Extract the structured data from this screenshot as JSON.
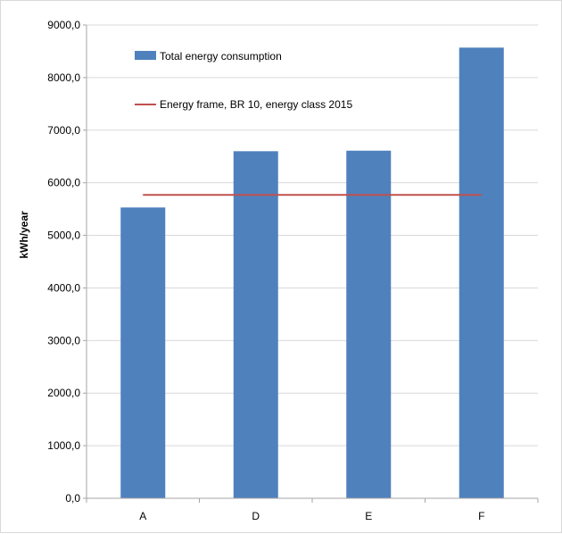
{
  "chart_data": {
    "type": "bar",
    "categories": [
      "A",
      "D",
      "E",
      "F"
    ],
    "series": [
      {
        "name": "Total energy consumption",
        "kind": "bar",
        "color": "#4f81bd",
        "values": [
          5530,
          6600,
          6610,
          8570
        ]
      },
      {
        "name": "Energy frame, BR 10, energy class 2015",
        "kind": "line",
        "color": "#c0504d",
        "values": [
          5770,
          5770,
          5770,
          5770
        ]
      }
    ],
    "title": "",
    "xlabel": "",
    "ylabel": "kWh/year",
    "ylim": [
      0,
      9000
    ],
    "yticks": [
      0,
      1000,
      2000,
      3000,
      4000,
      5000,
      6000,
      7000,
      8000,
      9000
    ],
    "ytick_labels": [
      "0,0",
      "1000,0",
      "2000,0",
      "3000,0",
      "4000,0",
      "5000,0",
      "6000,0",
      "7000,0",
      "8000,0",
      "9000,0"
    ],
    "grid": true,
    "legend_position": "top-left inside"
  }
}
